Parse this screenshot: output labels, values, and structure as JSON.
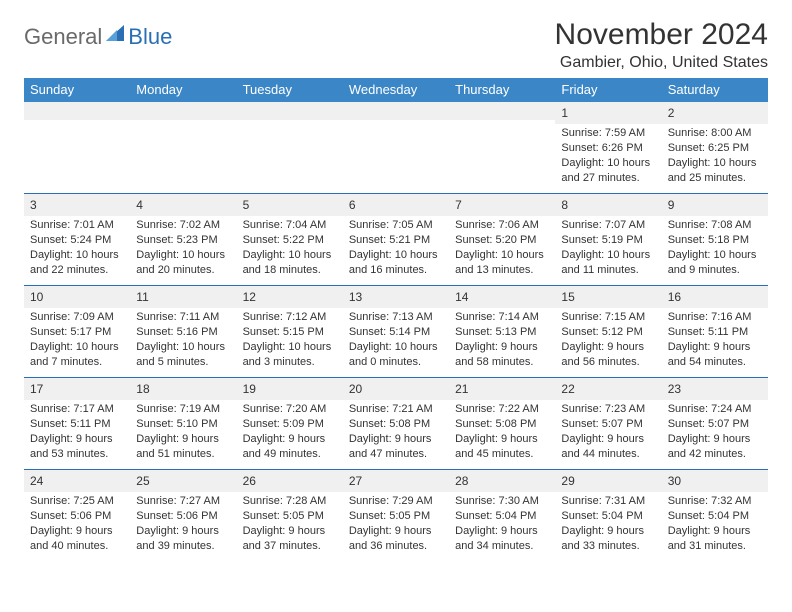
{
  "logo": {
    "part1": "General",
    "part2": "Blue"
  },
  "title": "November 2024",
  "location": "Gambier, Ohio, United States",
  "colors": {
    "header_bg": "#3b86c6",
    "border": "#2a6fb5",
    "daynum_bg": "#f0f0f0",
    "text": "#333333",
    "logo_gray": "#6a6a6a",
    "logo_blue": "#2a6fb5"
  },
  "day_headers": [
    "Sunday",
    "Monday",
    "Tuesday",
    "Wednesday",
    "Thursday",
    "Friday",
    "Saturday"
  ],
  "weeks": [
    [
      null,
      null,
      null,
      null,
      null,
      {
        "n": "1",
        "sr": "7:59 AM",
        "ss": "6:26 PM",
        "dl": "10 hours and 27 minutes."
      },
      {
        "n": "2",
        "sr": "8:00 AM",
        "ss": "6:25 PM",
        "dl": "10 hours and 25 minutes."
      }
    ],
    [
      {
        "n": "3",
        "sr": "7:01 AM",
        "ss": "5:24 PM",
        "dl": "10 hours and 22 minutes."
      },
      {
        "n": "4",
        "sr": "7:02 AM",
        "ss": "5:23 PM",
        "dl": "10 hours and 20 minutes."
      },
      {
        "n": "5",
        "sr": "7:04 AM",
        "ss": "5:22 PM",
        "dl": "10 hours and 18 minutes."
      },
      {
        "n": "6",
        "sr": "7:05 AM",
        "ss": "5:21 PM",
        "dl": "10 hours and 16 minutes."
      },
      {
        "n": "7",
        "sr": "7:06 AM",
        "ss": "5:20 PM",
        "dl": "10 hours and 13 minutes."
      },
      {
        "n": "8",
        "sr": "7:07 AM",
        "ss": "5:19 PM",
        "dl": "10 hours and 11 minutes."
      },
      {
        "n": "9",
        "sr": "7:08 AM",
        "ss": "5:18 PM",
        "dl": "10 hours and 9 minutes."
      }
    ],
    [
      {
        "n": "10",
        "sr": "7:09 AM",
        "ss": "5:17 PM",
        "dl": "10 hours and 7 minutes."
      },
      {
        "n": "11",
        "sr": "7:11 AM",
        "ss": "5:16 PM",
        "dl": "10 hours and 5 minutes."
      },
      {
        "n": "12",
        "sr": "7:12 AM",
        "ss": "5:15 PM",
        "dl": "10 hours and 3 minutes."
      },
      {
        "n": "13",
        "sr": "7:13 AM",
        "ss": "5:14 PM",
        "dl": "10 hours and 0 minutes."
      },
      {
        "n": "14",
        "sr": "7:14 AM",
        "ss": "5:13 PM",
        "dl": "9 hours and 58 minutes."
      },
      {
        "n": "15",
        "sr": "7:15 AM",
        "ss": "5:12 PM",
        "dl": "9 hours and 56 minutes."
      },
      {
        "n": "16",
        "sr": "7:16 AM",
        "ss": "5:11 PM",
        "dl": "9 hours and 54 minutes."
      }
    ],
    [
      {
        "n": "17",
        "sr": "7:17 AM",
        "ss": "5:11 PM",
        "dl": "9 hours and 53 minutes."
      },
      {
        "n": "18",
        "sr": "7:19 AM",
        "ss": "5:10 PM",
        "dl": "9 hours and 51 minutes."
      },
      {
        "n": "19",
        "sr": "7:20 AM",
        "ss": "5:09 PM",
        "dl": "9 hours and 49 minutes."
      },
      {
        "n": "20",
        "sr": "7:21 AM",
        "ss": "5:08 PM",
        "dl": "9 hours and 47 minutes."
      },
      {
        "n": "21",
        "sr": "7:22 AM",
        "ss": "5:08 PM",
        "dl": "9 hours and 45 minutes."
      },
      {
        "n": "22",
        "sr": "7:23 AM",
        "ss": "5:07 PM",
        "dl": "9 hours and 44 minutes."
      },
      {
        "n": "23",
        "sr": "7:24 AM",
        "ss": "5:07 PM",
        "dl": "9 hours and 42 minutes."
      }
    ],
    [
      {
        "n": "24",
        "sr": "7:25 AM",
        "ss": "5:06 PM",
        "dl": "9 hours and 40 minutes."
      },
      {
        "n": "25",
        "sr": "7:27 AM",
        "ss": "5:06 PM",
        "dl": "9 hours and 39 minutes."
      },
      {
        "n": "26",
        "sr": "7:28 AM",
        "ss": "5:05 PM",
        "dl": "9 hours and 37 minutes."
      },
      {
        "n": "27",
        "sr": "7:29 AM",
        "ss": "5:05 PM",
        "dl": "9 hours and 36 minutes."
      },
      {
        "n": "28",
        "sr": "7:30 AM",
        "ss": "5:04 PM",
        "dl": "9 hours and 34 minutes."
      },
      {
        "n": "29",
        "sr": "7:31 AM",
        "ss": "5:04 PM",
        "dl": "9 hours and 33 minutes."
      },
      {
        "n": "30",
        "sr": "7:32 AM",
        "ss": "5:04 PM",
        "dl": "9 hours and 31 minutes."
      }
    ]
  ],
  "labels": {
    "sunrise": "Sunrise:",
    "sunset": "Sunset:",
    "daylight": "Daylight:"
  }
}
